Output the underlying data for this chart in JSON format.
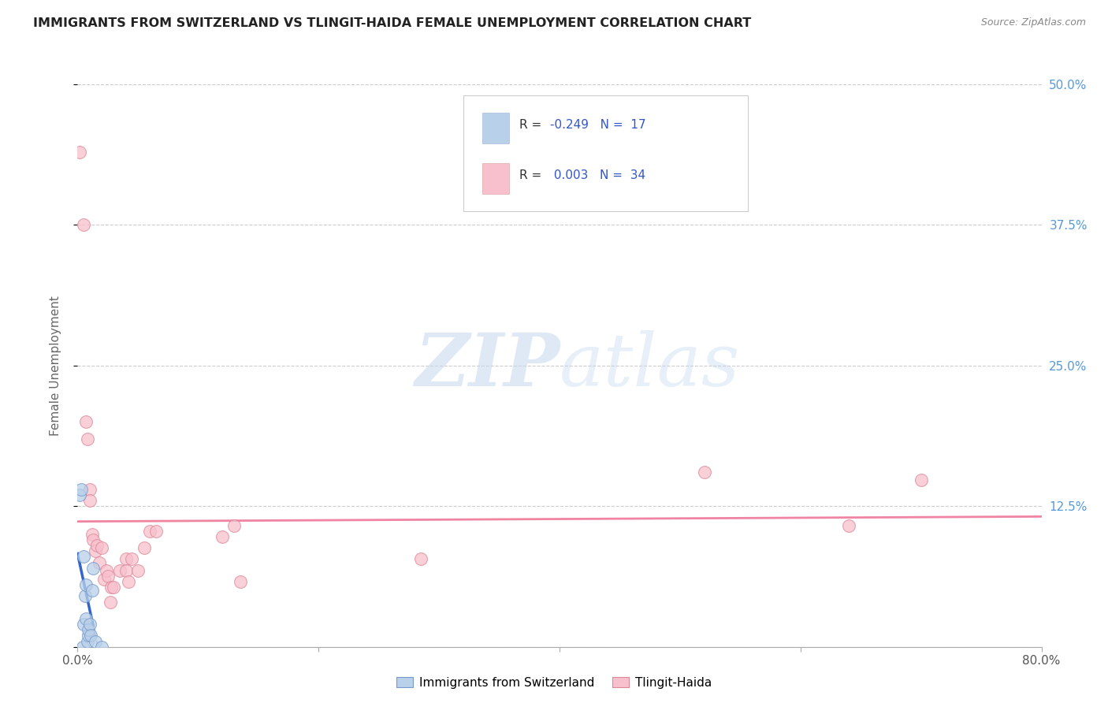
{
  "title": "IMMIGRANTS FROM SWITZERLAND VS TLINGIT-HAIDA FEMALE UNEMPLOYMENT CORRELATION CHART",
  "source": "Source: ZipAtlas.com",
  "ylabel": "Female Unemployment",
  "xlim": [
    0.0,
    0.8
  ],
  "ylim": [
    0.0,
    0.5
  ],
  "ytick_vals": [
    0.0,
    0.125,
    0.25,
    0.375,
    0.5
  ],
  "xtick_positions": [
    0.0,
    0.2,
    0.4,
    0.6,
    0.8
  ],
  "legend_box": {
    "series1_color": "#b8d0e8",
    "series1_border": "#aabbdd",
    "series1_R": "-0.249",
    "series1_N": "17",
    "series2_color": "#f8c0cc",
    "series2_border": "#ddaaaa",
    "series2_R": "0.003",
    "series2_N": "34"
  },
  "watermark_zip": "ZIP",
  "watermark_atlas": "atlas",
  "grid_color": "#cccccc",
  "switzerland_color": "#b8d0e8",
  "switzerland_edge": "#7799cc",
  "tlingit_color": "#f8c0cc",
  "tlingit_edge": "#dd8899",
  "trendline_switzerland_color": "#3366cc",
  "trendline_tlingit_color": "#ee7799",
  "scatter_size": 130,
  "right_tick_color": "#5599dd",
  "switzerland_points": [
    [
      0.002,
      0.135
    ],
    [
      0.003,
      0.14
    ],
    [
      0.004,
      0.0
    ],
    [
      0.005,
      0.08
    ],
    [
      0.005,
      0.02
    ],
    [
      0.006,
      0.045
    ],
    [
      0.007,
      0.025
    ],
    [
      0.007,
      0.055
    ],
    [
      0.008,
      0.005
    ],
    [
      0.009,
      0.01
    ],
    [
      0.009,
      0.015
    ],
    [
      0.01,
      0.02
    ],
    [
      0.011,
      0.01
    ],
    [
      0.012,
      0.05
    ],
    [
      0.013,
      0.07
    ],
    [
      0.015,
      0.005
    ],
    [
      0.02,
      0.0
    ]
  ],
  "tlingit_points": [
    [
      0.002,
      0.44
    ],
    [
      0.005,
      0.375
    ],
    [
      0.007,
      0.2
    ],
    [
      0.008,
      0.185
    ],
    [
      0.01,
      0.14
    ],
    [
      0.01,
      0.13
    ],
    [
      0.012,
      0.1
    ],
    [
      0.013,
      0.095
    ],
    [
      0.015,
      0.085
    ],
    [
      0.016,
      0.09
    ],
    [
      0.018,
      0.075
    ],
    [
      0.02,
      0.088
    ],
    [
      0.022,
      0.06
    ],
    [
      0.024,
      0.068
    ],
    [
      0.025,
      0.063
    ],
    [
      0.027,
      0.04
    ],
    [
      0.028,
      0.053
    ],
    [
      0.03,
      0.053
    ],
    [
      0.035,
      0.068
    ],
    [
      0.04,
      0.078
    ],
    [
      0.04,
      0.068
    ],
    [
      0.042,
      0.058
    ],
    [
      0.045,
      0.078
    ],
    [
      0.05,
      0.068
    ],
    [
      0.055,
      0.088
    ],
    [
      0.06,
      0.103
    ],
    [
      0.065,
      0.103
    ],
    [
      0.12,
      0.098
    ],
    [
      0.13,
      0.108
    ],
    [
      0.135,
      0.058
    ],
    [
      0.285,
      0.078
    ],
    [
      0.52,
      0.155
    ],
    [
      0.64,
      0.108
    ],
    [
      0.7,
      0.148
    ]
  ]
}
